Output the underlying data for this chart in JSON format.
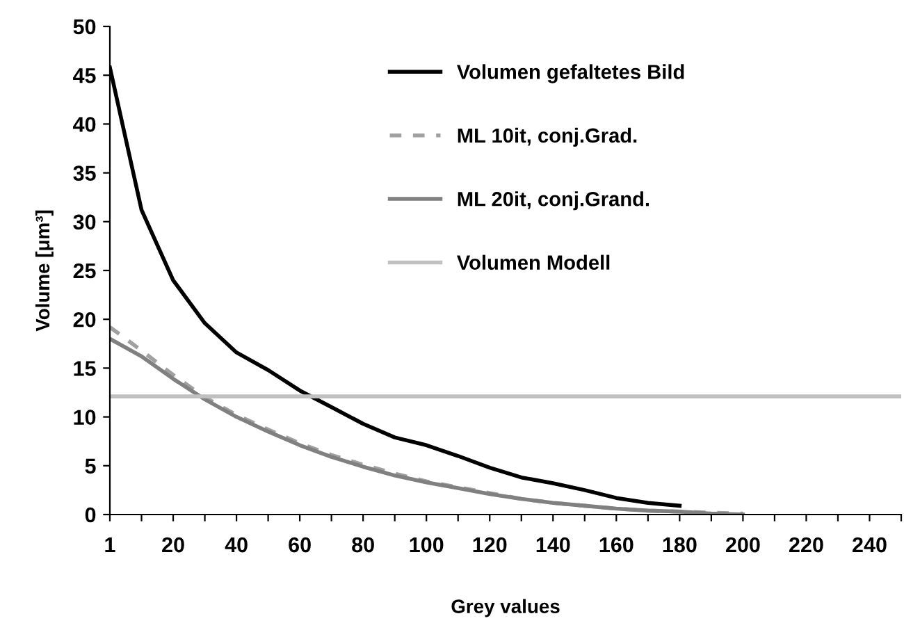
{
  "chart_data": {
    "type": "line",
    "xlabel": "Grey values",
    "ylabel": "Volume [μm³]",
    "categories": [
      "1",
      null,
      "20",
      null,
      "40",
      null,
      "60",
      null,
      "80",
      null,
      "100",
      null,
      "120",
      null,
      "140",
      null,
      "160",
      null,
      "180",
      null,
      "200",
      null,
      "220",
      null,
      "240",
      null
    ],
    "series": [
      {
        "name": "Volumen gefaltetes Bild",
        "color": "#000000",
        "line_style": "solid",
        "values": [
          45.8,
          31.2,
          24.0,
          19.6,
          16.6,
          14.8,
          12.7,
          11.0,
          9.3,
          7.9,
          7.1,
          6.0,
          4.8,
          3.8,
          3.2,
          2.5,
          1.7,
          1.2,
          0.9,
          null,
          null,
          null,
          null,
          null,
          null,
          null
        ]
      },
      {
        "name": "ML 10it, conj.Grad.",
        "color": "#a0a0a0",
        "line_style": "dashed",
        "values": [
          19.2,
          16.8,
          14.3,
          12.0,
          10.2,
          8.7,
          7.3,
          6.1,
          5.1,
          4.2,
          3.4,
          2.8,
          2.2,
          1.6,
          1.2,
          0.9,
          0.6,
          0.4,
          0.3,
          0.2,
          0.1,
          null,
          null,
          null,
          null,
          null
        ]
      },
      {
        "name": "ML 20it, conj.Grand.",
        "color": "#808080",
        "line_style": "solid",
        "values": [
          18.0,
          16.2,
          13.9,
          11.8,
          10.0,
          8.5,
          7.1,
          5.9,
          4.9,
          4.0,
          3.3,
          2.7,
          2.1,
          1.6,
          1.2,
          0.9,
          0.6,
          0.4,
          0.3,
          0.1,
          0.0,
          null,
          null,
          null,
          null,
          null
        ]
      }
    ],
    "ref_lines": [
      {
        "axis": "y",
        "value": 12.1,
        "label": "Volumen Modell",
        "color": "#c0c0c0"
      }
    ],
    "ylim": [
      0,
      50
    ],
    "yticks": [
      0,
      5,
      10,
      15,
      20,
      25,
      30,
      35,
      40,
      45,
      50
    ],
    "grid": false,
    "legend": "top right",
    "marker": "none"
  }
}
